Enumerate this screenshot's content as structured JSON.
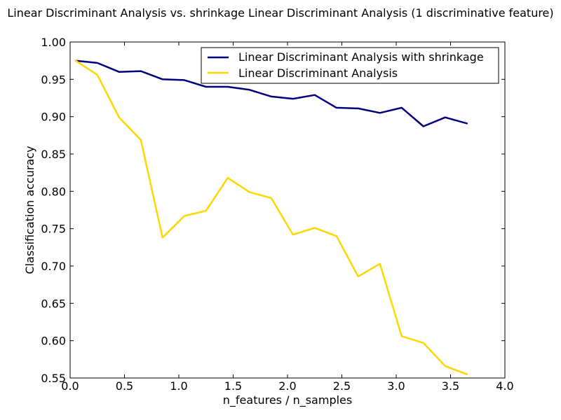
{
  "chart_data": {
    "type": "line",
    "title": "Linear Discriminant Analysis vs. shrinkage Linear Discriminant Analysis (1 discriminative feature)",
    "xlabel": "n_features / n_samples",
    "ylabel": "Classification accuracy",
    "xlim": [
      0.0,
      4.0
    ],
    "ylim": [
      0.55,
      1.0
    ],
    "xticks": [
      "0.0",
      "0.5",
      "1.0",
      "1.5",
      "2.0",
      "2.5",
      "3.0",
      "3.5",
      "4.0"
    ],
    "yticks": [
      "0.55",
      "0.60",
      "0.65",
      "0.70",
      "0.75",
      "0.80",
      "0.85",
      "0.90",
      "0.95",
      "1.00"
    ],
    "grid": false,
    "legend_position": "top-right",
    "x": [
      0.05,
      0.25,
      0.45,
      0.65,
      0.85,
      1.05,
      1.25,
      1.45,
      1.65,
      1.85,
      2.05,
      2.25,
      2.45,
      2.65,
      2.85,
      3.05,
      3.25,
      3.45,
      3.65
    ],
    "series": [
      {
        "name": "Linear Discriminant Analysis with shrinkage",
        "color": "#000080",
        "values": [
          0.975,
          0.972,
          0.96,
          0.961,
          0.95,
          0.949,
          0.94,
          0.94,
          0.936,
          0.927,
          0.924,
          0.929,
          0.912,
          0.911,
          0.905,
          0.912,
          0.887,
          0.899,
          0.891
        ]
      },
      {
        "name": "Linear Discriminant Analysis",
        "color": "#ffd700",
        "values": [
          0.975,
          0.956,
          0.899,
          0.869,
          0.738,
          0.767,
          0.774,
          0.818,
          0.799,
          0.791,
          0.742,
          0.751,
          0.74,
          0.686,
          0.703,
          0.606,
          0.597,
          0.566,
          0.555
        ]
      }
    ]
  }
}
